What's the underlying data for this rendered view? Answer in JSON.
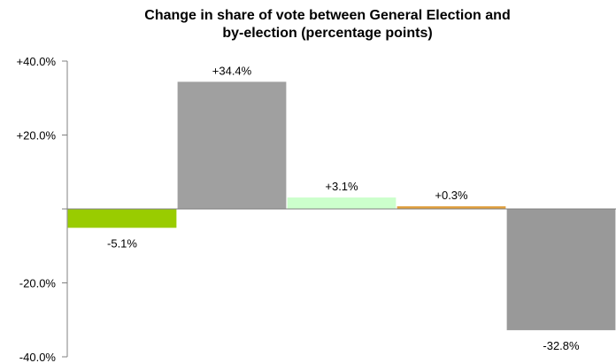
{
  "chart_data": {
    "type": "bar",
    "title_line1": "Change in share of vote between General Election  and",
    "title_line2": "by-election (percentage points)",
    "categories": [
      "",
      "",
      "",
      "",
      ""
    ],
    "values": [
      -5.1,
      34.4,
      3.1,
      0.3,
      -32.8
    ],
    "data_labels": [
      "-5.1%",
      "+34.4%",
      "+3.1%",
      "+0.3%",
      "-32.8%"
    ],
    "colors": [
      "#99CC00",
      "#A0A0A0",
      "#CCFFCC",
      "#E0A040",
      "#999999"
    ],
    "ylim": [
      -40,
      40
    ],
    "yticks": [
      40,
      20,
      -20,
      -40
    ],
    "ytick_labels": [
      "+40.0%",
      "+20.0%",
      "-20.0%",
      "-40.0%"
    ],
    "grid": false,
    "legend": "none"
  }
}
